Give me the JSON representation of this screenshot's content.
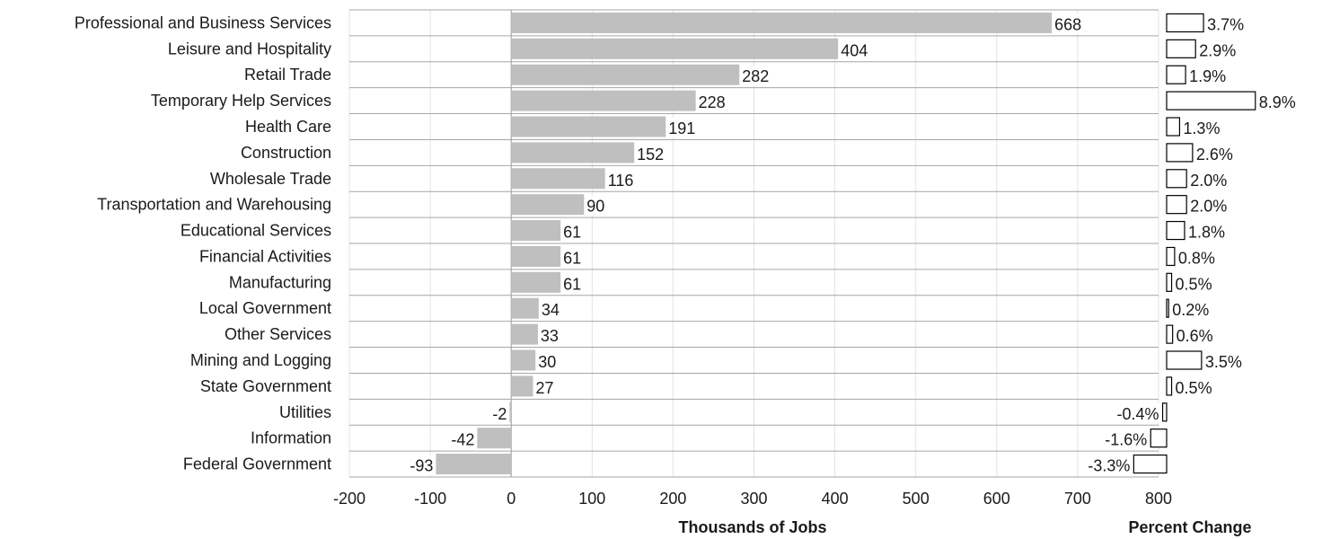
{
  "chart_data": {
    "type": "bar",
    "orientation": "horizontal",
    "categories": [
      "Professional and Business Services",
      "Leisure and Hospitality",
      "Retail Trade",
      "Temporary Help Services",
      "Health Care",
      "Construction",
      "Wholesale Trade",
      "Transportation and Warehousing",
      "Educational Services",
      "Financial Activities",
      "Manufacturing",
      "Local Government",
      "Other Services",
      "Mining and Logging",
      "State Government",
      "Utilities",
      "Information",
      "Federal Government"
    ],
    "series": [
      {
        "values": [
          668,
          404,
          282,
          228,
          191,
          152,
          116,
          90,
          61,
          61,
          61,
          34,
          33,
          30,
          27,
          -2,
          -42,
          -93
        ],
        "labels": [
          "668",
          "404",
          "282",
          "228",
          "191",
          "152",
          "116",
          "90",
          "61",
          "61",
          "61",
          "34",
          "33",
          "30",
          "27",
          "-2",
          "-42",
          "-93"
        ],
        "color": "#bfbfbf"
      },
      {
        "values": [
          3.7,
          2.9,
          1.9,
          8.9,
          1.3,
          2.6,
          2.0,
          2.0,
          1.8,
          0.8,
          0.5,
          0.2,
          0.6,
          3.5,
          0.5,
          -0.4,
          -1.6,
          -3.3
        ],
        "labels": [
          "3.7%",
          "2.9%",
          "1.9%",
          "8.9%",
          "1.3%",
          "2.6%",
          "2.0%",
          "2.0%",
          "1.8%",
          "0.8%",
          "0.5%",
          "0.2%",
          "0.6%",
          "3.5%",
          "0.5%",
          "-0.4%",
          "-1.6%",
          "-3.3%"
        ],
        "color": "#ffffff"
      }
    ],
    "xlim": [
      -200,
      800
    ],
    "x_ticks": [
      "-200",
      "-100",
      "0",
      "100",
      "200",
      "300",
      "400",
      "500",
      "600",
      "700",
      "800"
    ],
    "xlabel": "Thousands  of Jobs",
    "xlabel2": "Percent Change",
    "grid": true
  }
}
